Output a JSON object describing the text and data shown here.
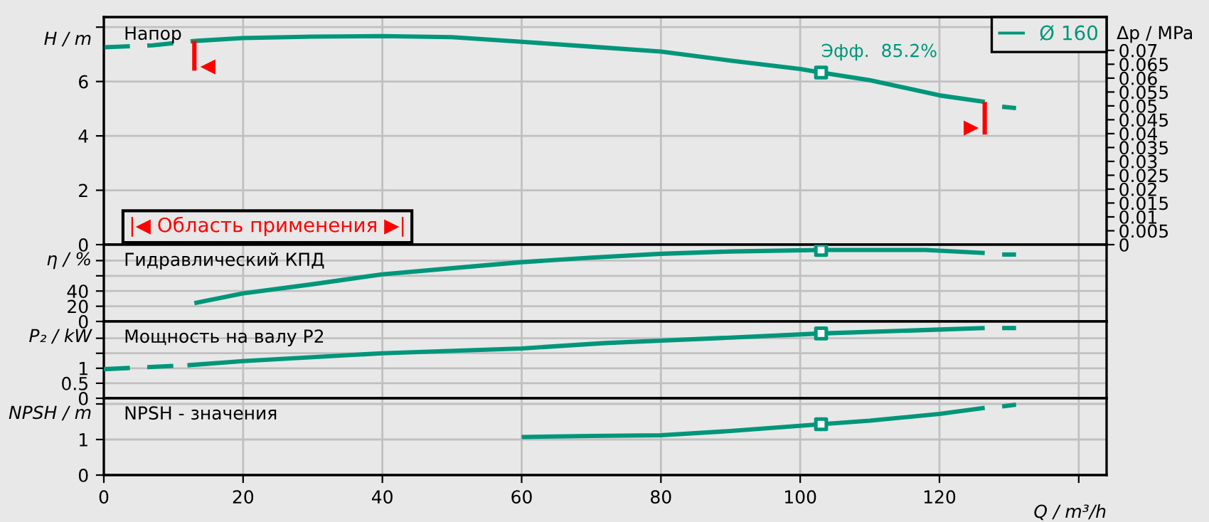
{
  "chart_data": [
    {
      "type": "line",
      "title": "Напор",
      "ylabel": "H / m",
      "y2label": "Δp / MPa",
      "xlim": [
        0,
        144
      ],
      "ylim": [
        0,
        8.37
      ],
      "y2lim": [
        0,
        0.082
      ],
      "yticks": [
        0,
        2,
        4,
        6,
        {
          "value": 8,
          "label": null
        }
      ],
      "y2ticks": [
        0,
        0.005,
        0.01,
        0.015,
        0.02,
        0.025,
        0.03,
        0.035,
        0.04,
        0.045,
        0.05,
        0.055,
        0.06,
        0.065,
        0.07
      ],
      "xticks": [
        0,
        20,
        40,
        60,
        80,
        100,
        120,
        140
      ],
      "tick_labels": "y",
      "grid": true,
      "legend": "top right",
      "series": [
        {
          "color": "#00967a",
          "line_style": "dashed",
          "x": [
            0,
            7,
            13
          ],
          "values": [
            7.26,
            7.33,
            7.49
          ]
        },
        {
          "name": "Ø 160",
          "color": "#00967a",
          "line_style": "solid",
          "x": [
            13,
            20,
            30,
            40,
            50,
            60,
            70,
            80,
            90,
            100,
            103,
            110,
            120,
            126.5
          ],
          "values": [
            7.49,
            7.6,
            7.65,
            7.67,
            7.63,
            7.46,
            7.28,
            7.1,
            6.77,
            6.46,
            6.33,
            6.05,
            5.49,
            5.25
          ]
        },
        {
          "color": "#00967a",
          "line_style": "dashed",
          "x": [
            129,
            131
          ],
          "values": [
            5.07,
            5.02
          ]
        },
        {
          "type": "scatter",
          "color": "#00967a",
          "marker": "square",
          "x": [
            103
          ],
          "values": [
            6.33
          ]
        },
        {
          "color": "#ff0000",
          "line_style": "solid",
          "x": [
            13,
            13
          ],
          "values": [
            7.5,
            6.4
          ]
        },
        {
          "color": "#ff0000",
          "line_style": "solid",
          "x": [
            126.5,
            126.5
          ],
          "values": [
            5.25,
            4.05
          ]
        }
      ],
      "annotations": [
        {
          "text": "Эфф.  85.2%",
          "x": 103,
          "y": 6.33
        },
        {
          "text": "◀",
          "x": 13,
          "y": 6.55
        },
        {
          "text": "▶",
          "x": 126.5,
          "y": 4.3
        },
        "|◀ Область применения ▶|"
      ]
    },
    {
      "type": "line",
      "title": "Гидравлический КПД",
      "ylabel": "η / %",
      "xlim": [
        0,
        144
      ],
      "ylim": [
        0,
        101
      ],
      "yticks": [
        0,
        20,
        40,
        {
          "value": 60,
          "label": null
        },
        {
          "value": 80,
          "label": null
        }
      ],
      "xticks": [
        0,
        20,
        40,
        60,
        80,
        100,
        120,
        140
      ],
      "tick_labels": "y",
      "grid": true,
      "series": [
        {
          "color": "#00967a",
          "line_style": "solid",
          "x": [
            13,
            20,
            30,
            40,
            50,
            60,
            70,
            80,
            90,
            103,
            118,
            126.5
          ],
          "values": [
            24,
            37,
            49,
            62,
            70,
            78,
            84,
            89,
            92,
            94,
            94,
            90
          ]
        },
        {
          "color": "#00967a",
          "line_style": "dashed",
          "x": [
            129,
            131
          ],
          "values": [
            88,
            88
          ]
        },
        {
          "type": "scatter",
          "color": "#00967a",
          "marker": "square",
          "x": [
            103
          ],
          "values": [
            94
          ]
        }
      ]
    },
    {
      "type": "line",
      "title": "Мощность на валу P2",
      "ylabel": "P₂ / kW",
      "xlim": [
        0,
        144
      ],
      "ylim": [
        0,
        2.56
      ],
      "yticks": [
        0,
        0.5,
        1,
        {
          "value": 1.5,
          "label": null
        },
        {
          "value": 2,
          "label": null
        }
      ],
      "xticks": [
        0,
        20,
        40,
        60,
        80,
        100,
        120,
        140
      ],
      "tick_labels": "y",
      "grid": true,
      "series": [
        {
          "color": "#00967a",
          "line_style": "dashed",
          "x": [
            0,
            12
          ],
          "values": [
            0.97,
            1.1
          ]
        },
        {
          "color": "#00967a",
          "line_style": "solid",
          "x": [
            12,
            20,
            40,
            60,
            72,
            80,
            90,
            103,
            120,
            126.5
          ],
          "values": [
            1.1,
            1.24,
            1.5,
            1.66,
            1.84,
            1.92,
            2.02,
            2.16,
            2.29,
            2.34
          ]
        },
        {
          "color": "#00967a",
          "line_style": "dashed",
          "x": [
            129,
            131
          ],
          "values": [
            2.34,
            2.34
          ]
        },
        {
          "type": "scatter",
          "color": "#00967a",
          "marker": "square",
          "x": [
            103
          ],
          "values": [
            2.16
          ]
        }
      ]
    },
    {
      "type": "line",
      "title": "NPSH - значения",
      "ylabel": "NPSH / m",
      "xlabel": "Q / m³/h",
      "xlim": [
        0,
        144
      ],
      "ylim": [
        0,
        2.16
      ],
      "yticks": [
        0,
        1,
        {
          "value": 2,
          "label": null
        }
      ],
      "xticks": [
        0,
        20,
        40,
        60,
        80,
        100,
        120,
        {
          "value": 140,
          "label": null
        }
      ],
      "grid": true,
      "series": [
        {
          "color": "#00967a",
          "line_style": "solid",
          "x": [
            60,
            70,
            80,
            90,
            103,
            110,
            120,
            126.5
          ],
          "values": [
            1.07,
            1.1,
            1.12,
            1.24,
            1.43,
            1.53,
            1.72,
            1.89
          ]
        },
        {
          "color": "#00967a",
          "line_style": "dashed",
          "x": [
            129,
            131
          ],
          "values": [
            1.93,
            1.98
          ]
        },
        {
          "type": "scatter",
          "color": "#00967a",
          "marker": "square",
          "x": [
            103
          ],
          "values": [
            1.43
          ]
        }
      ]
    }
  ]
}
